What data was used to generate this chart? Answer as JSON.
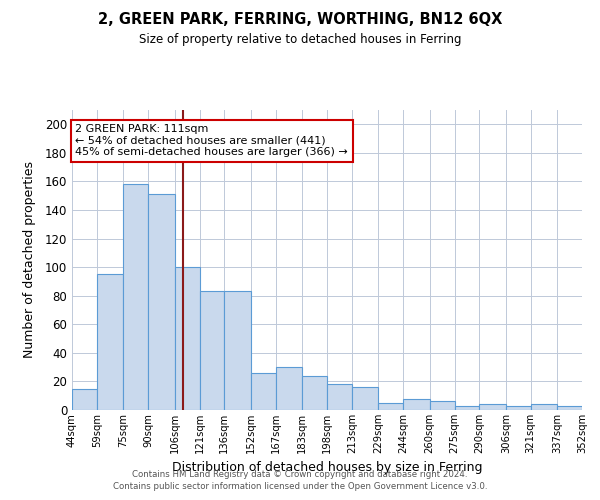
{
  "title": "2, GREEN PARK, FERRING, WORTHING, BN12 6QX",
  "subtitle": "Size of property relative to detached houses in Ferring",
  "xlabel": "Distribution of detached houses by size in Ferring",
  "ylabel": "Number of detached properties",
  "bar_color": "#c9d9ed",
  "bar_edge_color": "#5b9bd5",
  "background_color": "#ffffff",
  "grid_color": "#bfc9d9",
  "vline_x": 111,
  "vline_color": "#8b1a1a",
  "annotation_title": "2 GREEN PARK: 111sqm",
  "annotation_line1": "← 54% of detached houses are smaller (441)",
  "annotation_line2": "45% of semi-detached houses are larger (366) →",
  "annotation_box_color": "#ffffff",
  "annotation_box_edge": "#cc0000",
  "bins": [
    44,
    59,
    75,
    90,
    106,
    121,
    136,
    152,
    167,
    183,
    198,
    213,
    229,
    244,
    260,
    275,
    290,
    306,
    321,
    337,
    352
  ],
  "counts": [
    15,
    95,
    158,
    151,
    100,
    83,
    83,
    26,
    30,
    24,
    18,
    16,
    5,
    8,
    6,
    3,
    4,
    3,
    4,
    3
  ],
  "bin_labels": [
    "44sqm",
    "59sqm",
    "75sqm",
    "90sqm",
    "106sqm",
    "121sqm",
    "136sqm",
    "152sqm",
    "167sqm",
    "183sqm",
    "198sqm",
    "213sqm",
    "229sqm",
    "244sqm",
    "260sqm",
    "275sqm",
    "290sqm",
    "306sqm",
    "321sqm",
    "337sqm",
    "352sqm"
  ],
  "ylim": [
    0,
    210
  ],
  "yticks": [
    0,
    20,
    40,
    60,
    80,
    100,
    120,
    140,
    160,
    180,
    200
  ],
  "footer1": "Contains HM Land Registry data © Crown copyright and database right 2024.",
  "footer2": "Contains public sector information licensed under the Open Government Licence v3.0."
}
